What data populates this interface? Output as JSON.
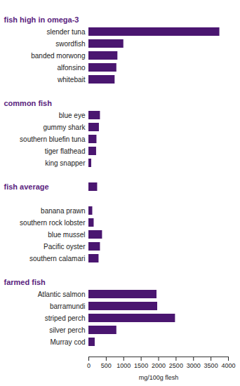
{
  "chart_data": {
    "type": "bar",
    "orientation": "horizontal",
    "color": "#4a1670",
    "xlabel": "mg/100g flesh",
    "xlim": [
      0,
      4000
    ],
    "xticks": [
      0,
      500,
      1000,
      1500,
      2000,
      2500,
      3000,
      3500,
      4000
    ],
    "groups": [
      {
        "title": "fish high in omega-3",
        "categories": [
          "slender tuna",
          "swordfish",
          "banded morwong",
          "alfonsino",
          "whitebait"
        ],
        "values": [
          3750,
          1000,
          830,
          800,
          750
        ]
      },
      {
        "title": "common fish",
        "categories": [
          "blue eye",
          "gummy shark",
          "southern bluefin tuna",
          "tiger flathead",
          "king snapper"
        ],
        "values": [
          330,
          300,
          230,
          220,
          80
        ]
      },
      {
        "title": "fish average",
        "value": 250
      },
      {
        "categories": [
          "banana prawn",
          "southern rock lobster",
          "blue mussel",
          "Pacific oyster",
          "southern calamari"
        ],
        "values": [
          110,
          150,
          390,
          330,
          290
        ]
      },
      {
        "title": "farmed fish",
        "categories": [
          "Atlantic salmon",
          "barramundi",
          "striped perch",
          "silver perch",
          "Murray cod"
        ],
        "values": [
          1950,
          1970,
          2480,
          800,
          180
        ]
      }
    ]
  }
}
